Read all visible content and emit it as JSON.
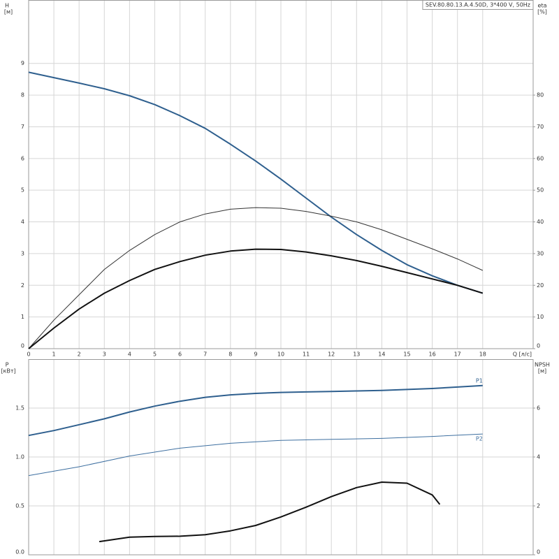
{
  "chart_data": [
    {
      "type": "line",
      "title": "SEV.80.80.13.A.4.50D, 3*400 V, 50Hz",
      "x_label": "Q [л/с]",
      "y_label": "H",
      "y_unit": "[м]",
      "y2_label": "eta",
      "y2_unit": "[%]",
      "x": [
        0,
        1,
        2,
        3,
        4,
        5,
        6,
        7,
        8,
        9,
        10,
        11,
        12,
        13,
        14,
        15,
        16,
        17,
        18
      ],
      "xlim": [
        0,
        20
      ],
      "xticks": [
        0,
        1,
        2,
        3,
        4,
        5,
        6,
        7,
        8,
        9,
        10,
        11,
        12,
        13,
        14,
        15,
        16,
        17,
        18
      ],
      "ylim": [
        0,
        11
      ],
      "yticks": [
        0,
        1,
        2,
        3,
        4,
        5,
        6,
        7,
        8,
        9
      ],
      "y2lim": [
        0,
        110
      ],
      "y2ticks": [
        0,
        10,
        20,
        30,
        40,
        50,
        60,
        70,
        80
      ],
      "grid": true,
      "series": [
        {
          "color": "#2e5f8e",
          "width": 2,
          "values": [
            8.72,
            8.55,
            8.38,
            8.2,
            7.98,
            7.7,
            7.35,
            6.95,
            6.45,
            5.92,
            5.35,
            4.75,
            4.15,
            3.6,
            3.1,
            2.65,
            2.3,
            2.0,
            1.75
          ]
        },
        {
          "color": "#333333",
          "width": 1,
          "axis": "y2",
          "values": [
            0,
            9,
            17,
            25,
            31,
            36,
            40,
            42.5,
            44,
            44.5,
            44.3,
            43.3,
            41.8,
            40,
            37.5,
            34.5,
            31.5,
            28.3,
            24.7
          ]
        },
        {
          "color": "#111111",
          "width": 2,
          "axis": "y2",
          "values": [
            0,
            6.5,
            12.5,
            17.5,
            21.5,
            25,
            27.5,
            29.5,
            30.8,
            31.4,
            31.3,
            30.5,
            29.3,
            27.8,
            26,
            24,
            22,
            20,
            17.5
          ]
        }
      ]
    },
    {
      "type": "line",
      "y_label": "P",
      "y_unit": "[кВт]",
      "y2_label": "NPSH",
      "y2_unit": "[м]",
      "xlim": [
        0,
        20
      ],
      "ylim": [
        0,
        2
      ],
      "yticks": [
        {
          "value": 0,
          "label": "0.0"
        },
        0.5,
        {
          "value": 1,
          "label": "1.0"
        },
        1.5
      ],
      "y2lim": [
        0,
        8
      ],
      "y2ticks": [
        0,
        2,
        4,
        6
      ],
      "grid": true,
      "series": [
        {
          "name": "P1",
          "color": "#2e5f8e",
          "width": 2,
          "x": [
            0,
            1,
            2,
            3,
            4,
            5,
            6,
            7,
            8,
            9,
            10,
            11,
            12,
            13,
            14,
            15,
            16,
            17,
            18
          ],
          "values": [
            1.22,
            1.27,
            1.33,
            1.39,
            1.46,
            1.52,
            1.57,
            1.61,
            1.635,
            1.65,
            1.66,
            1.665,
            1.67,
            1.675,
            1.68,
            1.69,
            1.7,
            1.715,
            1.73
          ]
        },
        {
          "name": "P2",
          "color": "#3d6fa0",
          "width": 1,
          "x": [
            0,
            2,
            4,
            6,
            8,
            10,
            12,
            14,
            16,
            18
          ],
          "values": [
            0.81,
            0.9,
            1.01,
            1.09,
            1.14,
            1.17,
            1.18,
            1.19,
            1.21,
            1.235
          ]
        },
        {
          "color": "#111111",
          "width": 2,
          "axis": "y2",
          "x": [
            2.8,
            4,
            5,
            6,
            7,
            8,
            9,
            10,
            11,
            12,
            13,
            14,
            15,
            16,
            16.3
          ],
          "values": [
            0.54,
            0.72,
            0.75,
            0.76,
            0.82,
            0.98,
            1.2,
            1.55,
            1.95,
            2.38,
            2.75,
            2.97,
            2.93,
            2.45,
            2.06
          ]
        }
      ]
    }
  ]
}
